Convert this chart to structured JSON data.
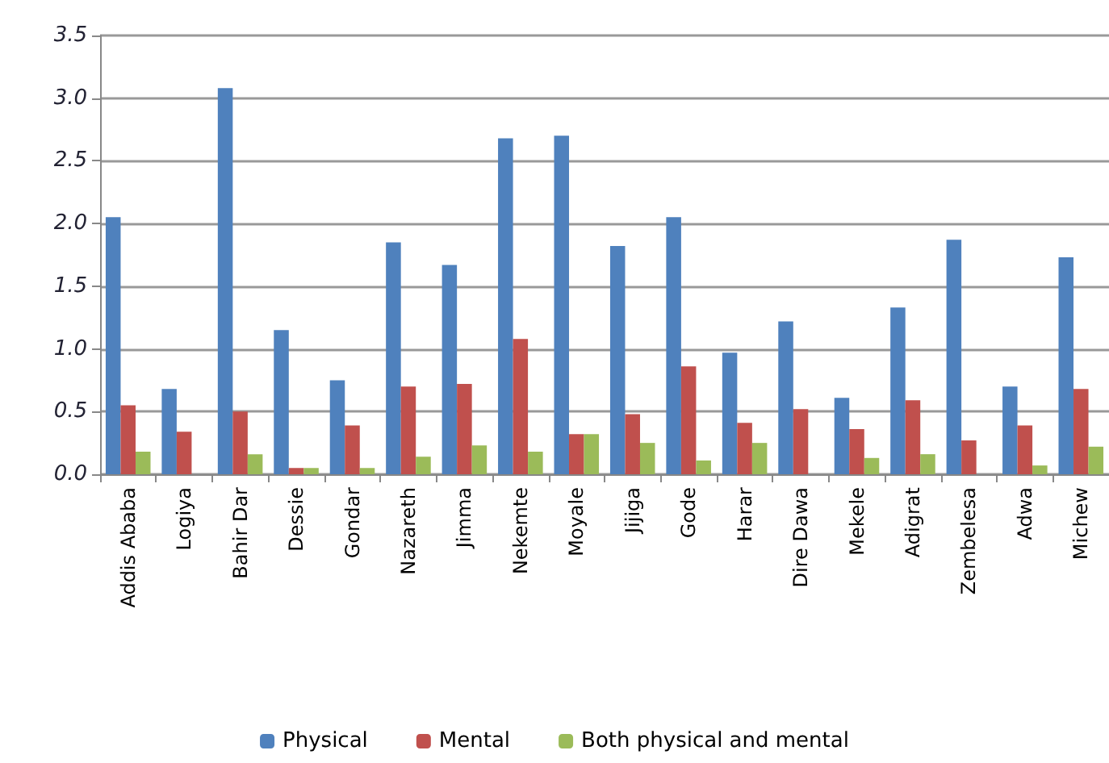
{
  "chart_data": {
    "type": "bar",
    "categories": [
      "Addis Ababa",
      "Logiya",
      "Bahir Dar",
      "Dessie",
      "Gondar",
      "Nazareth",
      "Jimma",
      "Nekemte",
      "Moyale",
      "Jijiga",
      "Gode",
      "Harar",
      "Dire Dawa",
      "Mekele",
      "Adigrat",
      "Zembelesa",
      "Adwa",
      "Michew"
    ],
    "series": [
      {
        "name": "Physical",
        "color": "#4f81bd",
        "values": [
          2.05,
          0.68,
          3.08,
          1.15,
          0.75,
          1.85,
          1.67,
          2.68,
          2.7,
          1.82,
          2.05,
          0.97,
          1.22,
          0.61,
          1.33,
          1.87,
          0.7,
          1.73
        ]
      },
      {
        "name": "Mental",
        "color": "#c0504d",
        "values": [
          0.55,
          0.34,
          0.5,
          0.05,
          0.39,
          0.7,
          0.72,
          1.08,
          0.32,
          0.48,
          0.86,
          0.41,
          0.52,
          0.36,
          0.59,
          0.27,
          0.39,
          0.68
        ]
      },
      {
        "name": "Both physical and mental",
        "color": "#9bbb59",
        "values": [
          0.18,
          0,
          0.16,
          0.05,
          0.05,
          0.14,
          0.23,
          0.18,
          0.32,
          0.25,
          0.11,
          0.25,
          0,
          0.13,
          0.16,
          0,
          0.07,
          0.22
        ]
      }
    ],
    "ylim": [
      0,
      3.5
    ],
    "yticks": [
      {
        "value": 0,
        "label": "0.0"
      },
      0.5,
      {
        "value": 1,
        "label": "1.0"
      },
      1.5,
      {
        "value": 2,
        "label": "2.0"
      },
      2.5,
      {
        "value": 3,
        "label": "3.0"
      },
      3.5
    ],
    "grid": "y",
    "legend": "bottom"
  }
}
